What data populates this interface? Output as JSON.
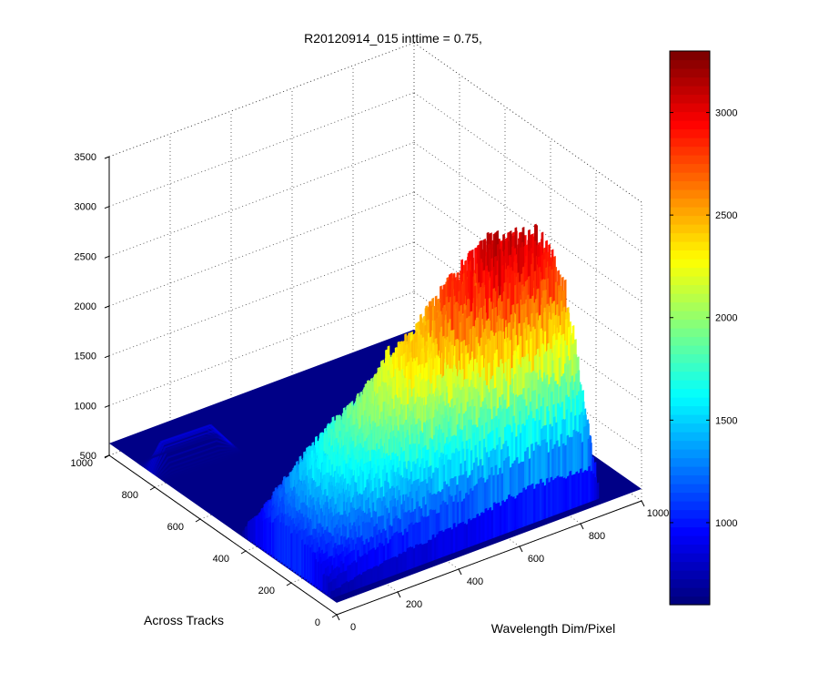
{
  "chart_data": {
    "type": "surface",
    "title": "R20120914_015 inttime = 0.75,",
    "xlabel": "Wavelength Dim/Pixel",
    "ylabel": "Across Tracks",
    "zlabel": "",
    "xlim": [
      0,
      1000
    ],
    "ylim": [
      0,
      1000
    ],
    "zlim": [
      500,
      3500
    ],
    "x_ticks": [
      "0",
      "200",
      "400",
      "600",
      "800",
      "1000"
    ],
    "y_ticks": [
      "0",
      "200",
      "400",
      "600",
      "800",
      "1000"
    ],
    "z_ticks": [
      "500",
      "1000",
      "1500",
      "2000",
      "2500",
      "3000",
      "3500"
    ],
    "grid": true,
    "colormap": "jet",
    "colorbar": {
      "range": [
        600,
        3300
      ],
      "ticks": [
        "1000",
        "1500",
        "2000",
        "2500",
        "3000"
      ]
    },
    "baseline_value": 620,
    "signal_band": {
      "wavelength_range": [
        0,
        900
      ],
      "across_track_range": [
        20,
        420
      ],
      "peak_value": 3150
    },
    "profile_along_wavelength": [
      {
        "x": 0,
        "z": 1050
      },
      {
        "x": 50,
        "z": 1300
      },
      {
        "x": 100,
        "z": 1550
      },
      {
        "x": 150,
        "z": 1700
      },
      {
        "x": 200,
        "z": 1850
      },
      {
        "x": 250,
        "z": 1950
      },
      {
        "x": 300,
        "z": 2050
      },
      {
        "x": 350,
        "z": 2250
      },
      {
        "x": 400,
        "z": 2450
      },
      {
        "x": 450,
        "z": 2400
      },
      {
        "x": 500,
        "z": 2650
      },
      {
        "x": 550,
        "z": 2850
      },
      {
        "x": 600,
        "z": 2950
      },
      {
        "x": 650,
        "z": 3100
      },
      {
        "x": 700,
        "z": 3150
      },
      {
        "x": 750,
        "z": 3050
      },
      {
        "x": 800,
        "z": 3100
      },
      {
        "x": 850,
        "z": 2950
      },
      {
        "x": 900,
        "z": 620
      }
    ]
  }
}
